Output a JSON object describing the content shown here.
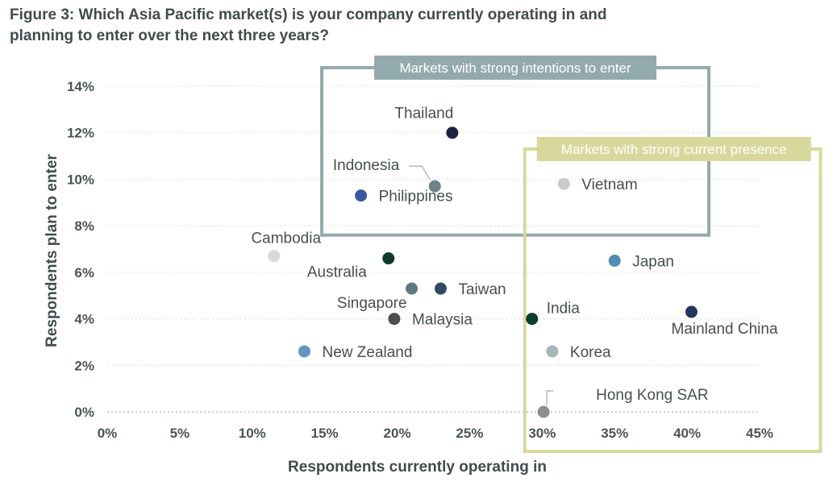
{
  "figure": {
    "title_line1": "Figure 3: Which Asia Pacific market(s) is your company currently operating in and",
    "title_line2": "planning to enter over the next three years?"
  },
  "chart_data": {
    "type": "scatter",
    "xlabel": "Respondents currently operating in",
    "ylabel": "Respondents plan to enter",
    "xlim": [
      0,
      45
    ],
    "ylim": [
      0,
      14
    ],
    "x_ticks": [
      0,
      5,
      10,
      15,
      20,
      25,
      30,
      35,
      40,
      45
    ],
    "y_ticks": [
      0,
      2,
      4,
      6,
      8,
      10,
      12,
      14
    ],
    "x_tick_labels": [
      "0%",
      "5%",
      "10%",
      "15%",
      "20%",
      "25%",
      "30%",
      "35%",
      "40%",
      "45%"
    ],
    "y_tick_labels": [
      "0%",
      "2%",
      "4%",
      "6%",
      "8%",
      "10%",
      "12%",
      "14%"
    ],
    "grid": true,
    "points": [
      {
        "label": "Thailand",
        "x": 23.8,
        "y": 12.0,
        "color": "#1c2340"
      },
      {
        "label": "Indonesia",
        "x": 22.6,
        "y": 9.7,
        "color": "#6f8186"
      },
      {
        "label": "Philippines",
        "x": 17.5,
        "y": 9.3,
        "color": "#3a56a0"
      },
      {
        "label": "Vietnam",
        "x": 31.5,
        "y": 9.8,
        "color": "#c9cccd"
      },
      {
        "label": "Cambodia",
        "x": 11.5,
        "y": 6.7,
        "color": "#d7dadb"
      },
      {
        "label": "Australia",
        "x": 19.4,
        "y": 6.6,
        "color": "#0f3a2b"
      },
      {
        "label": "Japan",
        "x": 35.0,
        "y": 6.5,
        "color": "#4f8db5"
      },
      {
        "label": "Singapore",
        "x": 21.0,
        "y": 5.3,
        "color": "#5f7a7c"
      },
      {
        "label": "Taiwan",
        "x": 23.0,
        "y": 5.3,
        "color": "#2d4a66"
      },
      {
        "label": "India",
        "x": 29.3,
        "y": 4.0,
        "color": "#0d3d2c"
      },
      {
        "label": "Mainland China",
        "x": 40.3,
        "y": 4.3,
        "color": "#24355f"
      },
      {
        "label": "Malaysia",
        "x": 19.8,
        "y": 4.0,
        "color": "#4b4d4e"
      },
      {
        "label": "New Zealand",
        "x": 13.6,
        "y": 2.6,
        "color": "#5f97c0"
      },
      {
        "label": "Korea",
        "x": 30.7,
        "y": 2.6,
        "color": "#a6b5b8"
      },
      {
        "label": "Hong Kong SAR",
        "x": 30.1,
        "y": 0.0,
        "color": "#8c8e8f"
      }
    ],
    "regions": [
      {
        "label": "Markets with strong intentions to enter",
        "x0": 14.8,
        "x1": 41.5,
        "y0": 7.6,
        "y1": 14.8,
        "color": "#93aaad"
      },
      {
        "label": "Markets with strong current presence",
        "x0": 28.8,
        "x1": 49.2,
        "y0": -1.7,
        "y1": 11.3,
        "color": "#d9d89c"
      }
    ]
  }
}
